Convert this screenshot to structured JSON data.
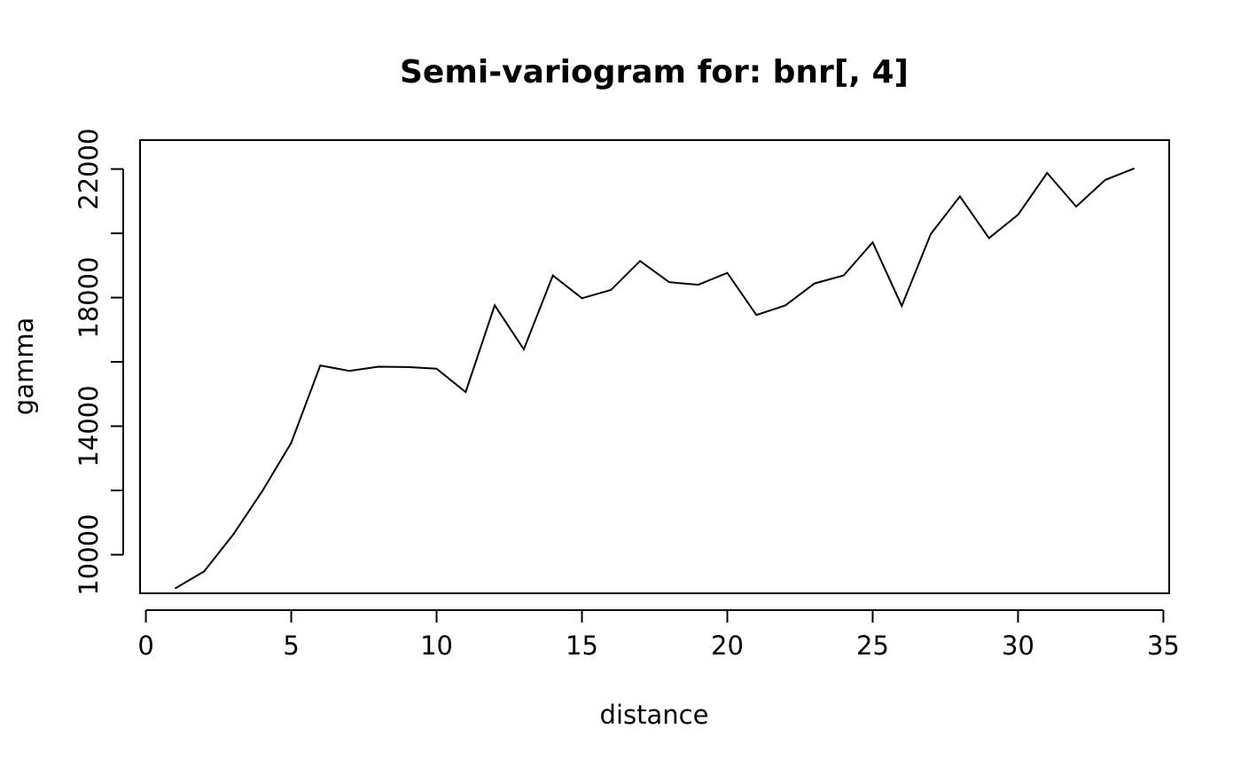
{
  "chart_data": {
    "type": "line",
    "title": "Semi-variogram for: bnr[, 4]",
    "xlabel": "distance",
    "ylabel": "gamma",
    "xlim": [
      -0.2,
      35.2
    ],
    "ylim": [
      8800,
      22900
    ],
    "x_ticks": [
      0,
      5,
      10,
      15,
      20,
      25,
      30,
      35
    ],
    "x_tick_labels": [
      "0",
      "5",
      "10",
      "15",
      "20",
      "25",
      "30",
      "35"
    ],
    "y_ticks": [
      10000,
      12000,
      14000,
      16000,
      18000,
      20000,
      22000
    ],
    "y_tick_labels": [
      "10000",
      "",
      "14000",
      "",
      "18000",
      "",
      "22000"
    ],
    "grid": false,
    "series": [
      {
        "x": [
          1,
          2,
          3,
          4,
          5,
          6,
          7,
          8,
          9,
          10,
          11,
          12,
          13,
          14,
          15,
          16,
          17,
          18,
          19,
          20,
          21,
          22,
          23,
          24,
          25,
          26,
          27,
          28,
          29,
          30,
          31,
          32,
          33,
          34
        ],
        "values": [
          8950,
          9480,
          10620,
          11970,
          13480,
          15890,
          15720,
          15850,
          15840,
          15790,
          15060,
          17760,
          16390,
          18690,
          17980,
          18240,
          19140,
          18480,
          18400,
          18770,
          17460,
          17760,
          18440,
          18690,
          19720,
          17740,
          19980,
          21150,
          19850,
          20580,
          21880,
          20830,
          21660,
          22020
        ]
      }
    ]
  }
}
